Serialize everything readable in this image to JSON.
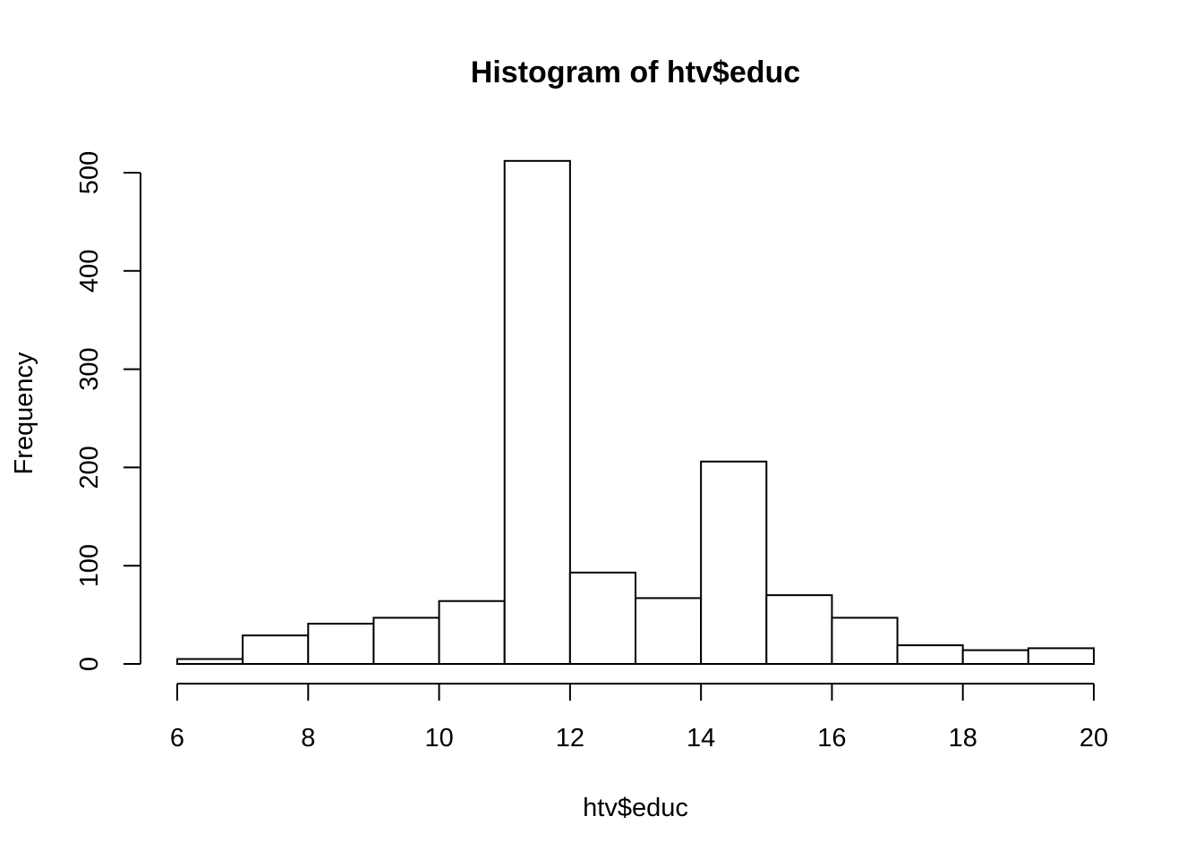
{
  "chart_data": {
    "type": "bar",
    "title": "Histogram of htv$educ",
    "xlabel": "htv$educ",
    "ylabel": "Frequency",
    "bins": [
      {
        "from": 6,
        "to": 7,
        "count": 5
      },
      {
        "from": 7,
        "to": 8,
        "count": 29
      },
      {
        "from": 8,
        "to": 9,
        "count": 41
      },
      {
        "from": 9,
        "to": 10,
        "count": 47
      },
      {
        "from": 10,
        "to": 11,
        "count": 64
      },
      {
        "from": 11,
        "to": 12,
        "count": 512
      },
      {
        "from": 12,
        "to": 13,
        "count": 93
      },
      {
        "from": 13,
        "to": 14,
        "count": 67
      },
      {
        "from": 14,
        "to": 15,
        "count": 206
      },
      {
        "from": 15,
        "to": 16,
        "count": 70
      },
      {
        "from": 16,
        "to": 17,
        "count": 47
      },
      {
        "from": 17,
        "to": 18,
        "count": 19
      },
      {
        "from": 18,
        "to": 19,
        "count": 14
      },
      {
        "from": 19,
        "to": 20,
        "count": 16
      }
    ],
    "xlim": [
      6,
      20
    ],
    "ylim": [
      0,
      500
    ],
    "x_ticks": [
      "6",
      "8",
      "10",
      "12",
      "14",
      "16",
      "18",
      "20"
    ],
    "y_ticks": [
      "0",
      "100",
      "200",
      "300",
      "400",
      "500"
    ],
    "grid": false,
    "colors": {
      "bar_fill": "#ffffff",
      "bar_stroke": "#000000"
    }
  }
}
